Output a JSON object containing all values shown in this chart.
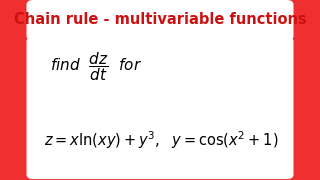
{
  "background_color": "#f03030",
  "title_text": "Chain rule - multivariable functions",
  "title_bg": "#ffffff",
  "title_color": "#cc1111",
  "title_fontsize": 10.5,
  "white_box_color": "#ffffff",
  "math_color": "#000000",
  "math_fontsize1": 11,
  "math_fontsize2": 10.5
}
